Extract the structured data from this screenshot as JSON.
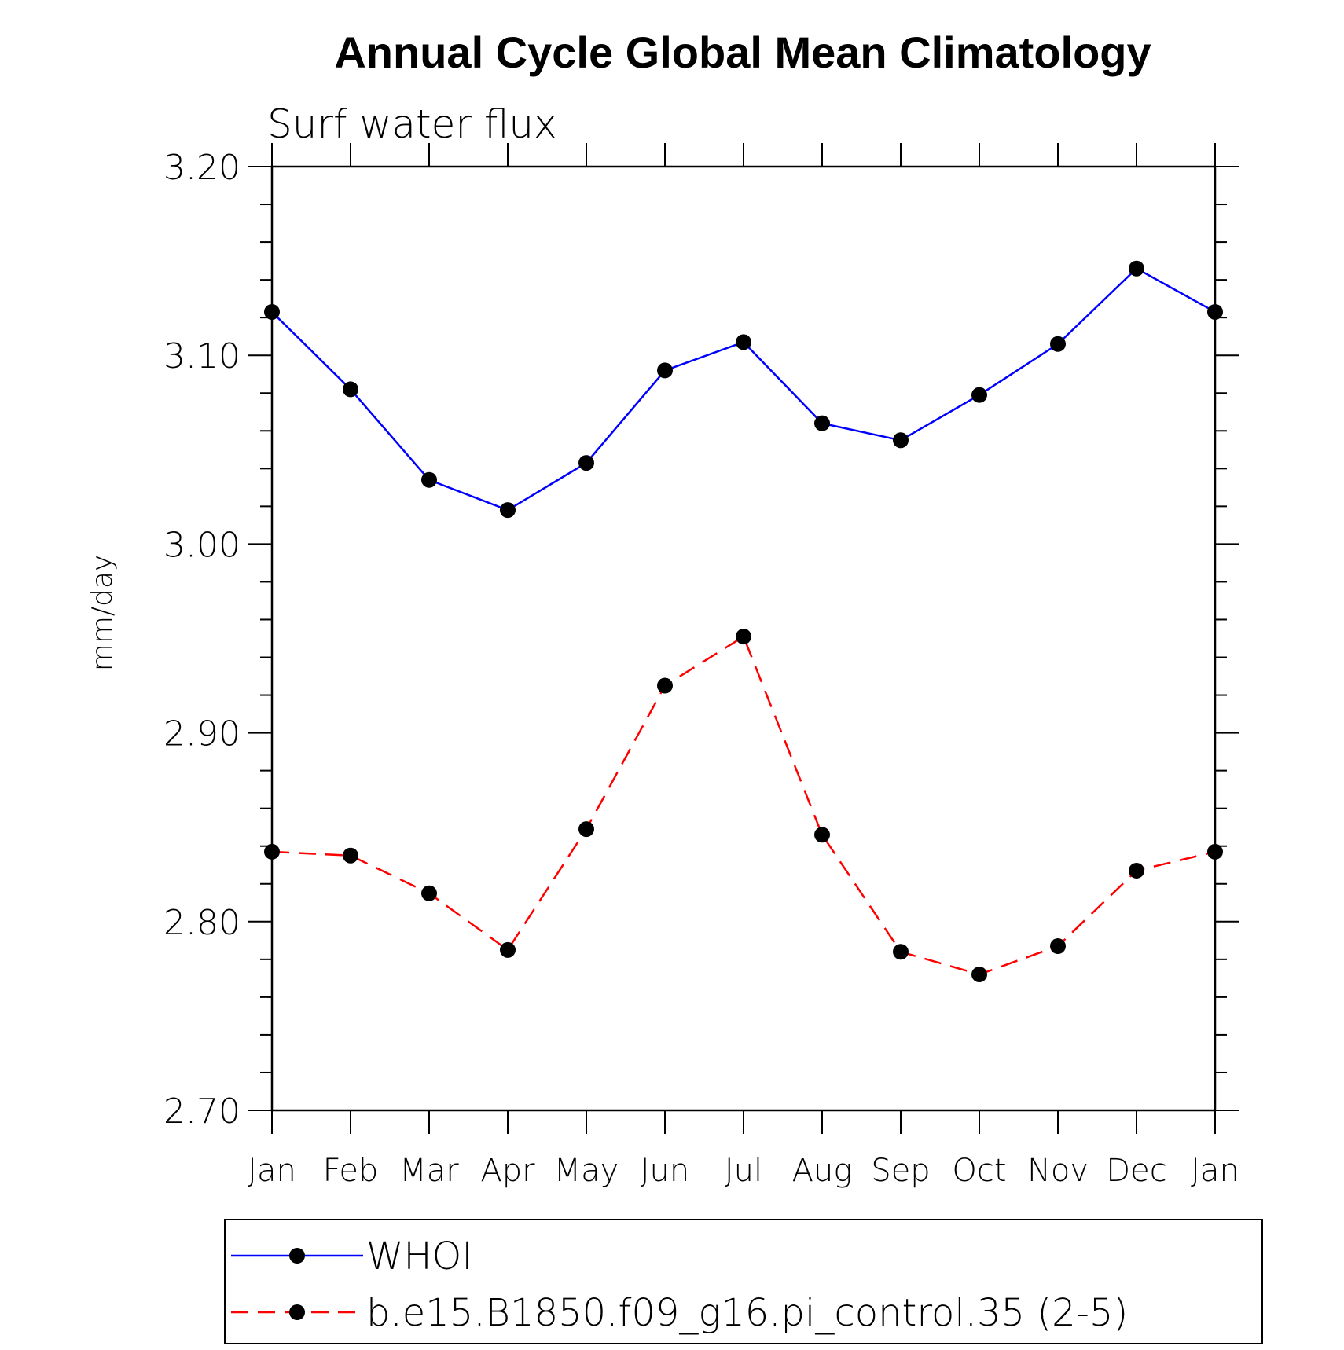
{
  "chart_data": {
    "type": "line",
    "title": "Annual Cycle Global Mean Climatology",
    "subtitle": "Surf water flux",
    "ylabel": "mm/day",
    "xlabel": "",
    "ylim": [
      2.7,
      3.2
    ],
    "yticks": [
      "3.20",
      "3.10",
      "3.00",
      "2.90",
      "2.80",
      "2.70"
    ],
    "categories": [
      "Jan",
      "Feb",
      "Mar",
      "Apr",
      "May",
      "Jun",
      "Jul",
      "Aug",
      "Sep",
      "Oct",
      "Nov",
      "Dec",
      "Jan"
    ],
    "series": [
      {
        "name": "WHOI",
        "color": "#0000ff",
        "dash": "solid",
        "marker": "filled-circle",
        "values": [
          3.123,
          3.082,
          3.034,
          3.018,
          3.043,
          3.092,
          3.107,
          3.064,
          3.055,
          3.079,
          3.106,
          3.146,
          3.123
        ]
      },
      {
        "name": "b.e15.B1850.f09_g16.pi_control.35 (2-5)",
        "color": "#ff0000",
        "dash": "dashed",
        "marker": "filled-circle",
        "values": [
          2.837,
          2.835,
          2.815,
          2.785,
          2.849,
          2.925,
          2.951,
          2.846,
          2.784,
          2.772,
          2.787,
          2.827,
          2.837
        ]
      }
    ],
    "legend_position": "bottom",
    "grid": false
  }
}
